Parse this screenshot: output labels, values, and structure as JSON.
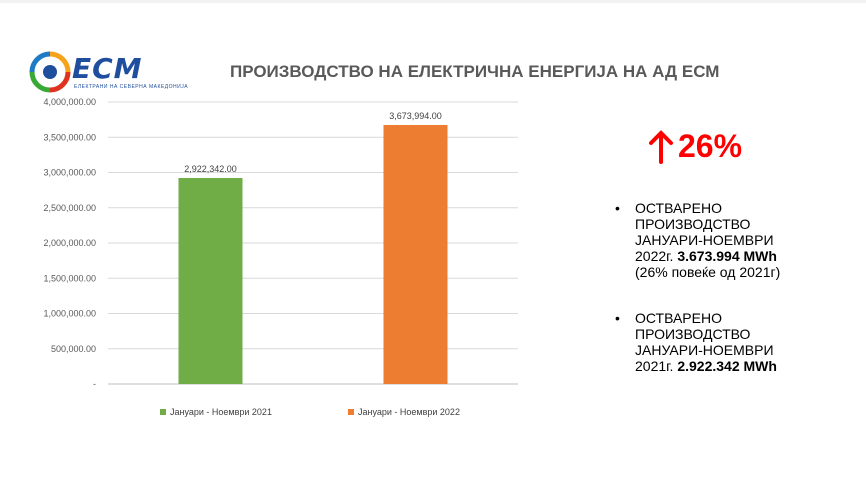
{
  "header": {
    "title": "ПРОИЗВОДСТВО НА ЕЛЕКТРИЧНА ЕНЕРГИЈА НА АД ЕСМ",
    "logo_text": "ECM",
    "logo_subtitle": "ЕЛЕКТРАНИ НА СЕВЕРНА МАКЕДОНИЈА"
  },
  "colors": {
    "green": "#70ad47",
    "orange": "#ed7d31",
    "accent_red": "#ff0000",
    "logo_blue": "#1f4e9e"
  },
  "growth": {
    "text": "26%",
    "icon": "arrow-up-icon"
  },
  "bullets": [
    {
      "line1": "ОСТВАРЕНО",
      "line2": "ПРОИЗВОДСТВО",
      "line3": "ЈАНУАРИ-НОЕМВРИ",
      "prefix": "2022г. ",
      "bold": "3.673.994 MWh",
      "note": "(26% повеќе од 2021г)"
    },
    {
      "line1": "ОСТВАРЕНО",
      "line2": "ПРОИЗВОДСТВО",
      "line3": "ЈАНУАРИ-НОЕМВРИ",
      "prefix": "2021г. ",
      "bold": "2.922.342 MWh",
      "note": ""
    }
  ],
  "chart_data": {
    "type": "bar",
    "categories": [
      "Јануари - Ноември  2021",
      "Јануари - Ноември 2022"
    ],
    "values": [
      2922342.0,
      3673994.0
    ],
    "data_labels": [
      "2,922,342.00",
      "3,673,994.00"
    ],
    "legend": [
      "Јануари - Ноември  2021",
      "Јануари - Ноември 2022"
    ],
    "legend_position": "bottom",
    "ylim": [
      0,
      4000000
    ],
    "yticks": [
      0,
      500000,
      1000000,
      1500000,
      2000000,
      2500000,
      3000000,
      3500000,
      4000000
    ],
    "ytick_labels": [
      "-",
      "500,000.00",
      "1,000,000.00",
      "1,500,000.00",
      "2,000,000.00",
      "2,500,000.00",
      "3,000,000.00",
      "3,500,000.00",
      "4,000,000.00"
    ],
    "grid": true,
    "xlabel": "",
    "ylabel": ""
  }
}
